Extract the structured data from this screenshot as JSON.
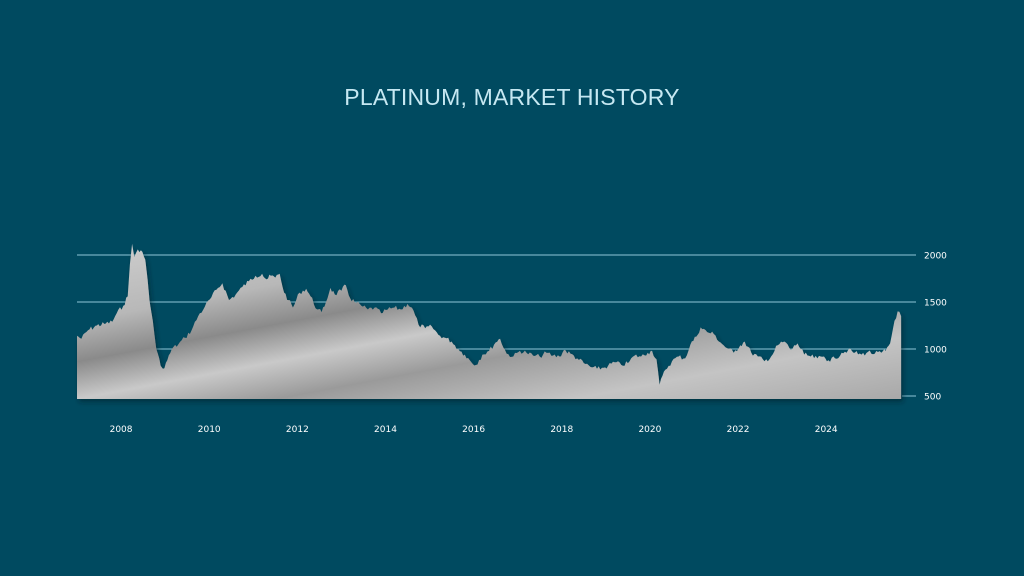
{
  "colors": {
    "background": "#004a60",
    "title": "#c6e8f2",
    "gridline": "#8fc7d8",
    "area_light": "#c8c8c8",
    "area_dark": "#8c8c8c",
    "tick_text": "#ffffff"
  },
  "chart_data": {
    "type": "area",
    "title": "PLATINUM, MARKET HISTORY",
    "xlabel": "",
    "ylabel": "",
    "grid": true,
    "legend": "none",
    "ylim": [
      500,
      2000
    ],
    "xlim": [
      2007.0,
      2025.72
    ],
    "y_ticks": [
      {
        "value": 2000,
        "label": "2000"
      },
      {
        "value": 1500,
        "label": "1500"
      },
      {
        "value": 1000,
        "label": "1000"
      },
      {
        "value": 500,
        "label": "500"
      }
    ],
    "x_ticks": [
      {
        "value": 2008,
        "label": "2008"
      },
      {
        "value": 2010,
        "label": "2010"
      },
      {
        "value": 2012,
        "label": "2012"
      },
      {
        "value": 2014,
        "label": "2014"
      },
      {
        "value": 2016,
        "label": "2016"
      },
      {
        "value": 2018,
        "label": "2018"
      },
      {
        "value": 2020,
        "label": "2020"
      },
      {
        "value": 2022,
        "label": "2022"
      },
      {
        "value": 2024,
        "label": "2024"
      }
    ],
    "series": [
      {
        "points": [
          [
            2007.0,
            1140
          ],
          [
            2007.1,
            1110
          ],
          [
            2007.25,
            1200
          ],
          [
            2007.45,
            1250
          ],
          [
            2007.65,
            1270
          ],
          [
            2007.8,
            1290
          ],
          [
            2007.9,
            1380
          ],
          [
            2008.05,
            1460
          ],
          [
            2008.15,
            1560
          ],
          [
            2008.2,
            1900
          ],
          [
            2008.25,
            2120
          ],
          [
            2008.3,
            1980
          ],
          [
            2008.38,
            2060
          ],
          [
            2008.45,
            2050
          ],
          [
            2008.55,
            1950
          ],
          [
            2008.6,
            1750
          ],
          [
            2008.65,
            1500
          ],
          [
            2008.72,
            1300
          ],
          [
            2008.8,
            1000
          ],
          [
            2008.9,
            820
          ],
          [
            2008.95,
            790
          ],
          [
            2009.05,
            880
          ],
          [
            2009.15,
            1000
          ],
          [
            2009.3,
            1050
          ],
          [
            2009.45,
            1120
          ],
          [
            2009.6,
            1200
          ],
          [
            2009.75,
            1350
          ],
          [
            2009.9,
            1450
          ],
          [
            2010.05,
            1550
          ],
          [
            2010.2,
            1650
          ],
          [
            2010.3,
            1700
          ],
          [
            2010.45,
            1520
          ],
          [
            2010.6,
            1580
          ],
          [
            2010.75,
            1660
          ],
          [
            2010.9,
            1720
          ],
          [
            2011.05,
            1780
          ],
          [
            2011.2,
            1800
          ],
          [
            2011.3,
            1740
          ],
          [
            2011.4,
            1780
          ],
          [
            2011.5,
            1760
          ],
          [
            2011.6,
            1800
          ],
          [
            2011.7,
            1600
          ],
          [
            2011.8,
            1520
          ],
          [
            2011.9,
            1440
          ],
          [
            2012.05,
            1600
          ],
          [
            2012.2,
            1640
          ],
          [
            2012.3,
            1560
          ],
          [
            2012.45,
            1420
          ],
          [
            2012.55,
            1390
          ],
          [
            2012.65,
            1500
          ],
          [
            2012.75,
            1650
          ],
          [
            2012.85,
            1580
          ],
          [
            2013.0,
            1620
          ],
          [
            2013.1,
            1680
          ],
          [
            2013.2,
            1540
          ],
          [
            2013.3,
            1500
          ],
          [
            2013.45,
            1460
          ],
          [
            2013.6,
            1420
          ],
          [
            2013.75,
            1440
          ],
          [
            2013.9,
            1380
          ],
          [
            2014.05,
            1420
          ],
          [
            2014.2,
            1440
          ],
          [
            2014.35,
            1420
          ],
          [
            2014.5,
            1480
          ],
          [
            2014.6,
            1440
          ],
          [
            2014.75,
            1260
          ],
          [
            2014.9,
            1220
          ],
          [
            2015.05,
            1240
          ],
          [
            2015.2,
            1150
          ],
          [
            2015.35,
            1120
          ],
          [
            2015.5,
            1080
          ],
          [
            2015.65,
            1000
          ],
          [
            2015.8,
            940
          ],
          [
            2015.95,
            860
          ],
          [
            2016.05,
            830
          ],
          [
            2016.2,
            940
          ],
          [
            2016.35,
            980
          ],
          [
            2016.5,
            1070
          ],
          [
            2016.6,
            1110
          ],
          [
            2016.75,
            950
          ],
          [
            2016.9,
            920
          ],
          [
            2017.05,
            980
          ],
          [
            2017.2,
            960
          ],
          [
            2017.35,
            930
          ],
          [
            2017.5,
            920
          ],
          [
            2017.65,
            960
          ],
          [
            2017.8,
            930
          ],
          [
            2017.95,
            920
          ],
          [
            2018.05,
            990
          ],
          [
            2018.2,
            950
          ],
          [
            2018.35,
            900
          ],
          [
            2018.5,
            850
          ],
          [
            2018.65,
            810
          ],
          [
            2018.8,
            790
          ],
          [
            2018.95,
            800
          ],
          [
            2019.05,
            820
          ],
          [
            2019.2,
            860
          ],
          [
            2019.35,
            830
          ],
          [
            2019.5,
            850
          ],
          [
            2019.65,
            930
          ],
          [
            2019.8,
            920
          ],
          [
            2019.95,
            960
          ],
          [
            2020.05,
            980
          ],
          [
            2020.15,
            890
          ],
          [
            2020.22,
            620
          ],
          [
            2020.35,
            780
          ],
          [
            2020.5,
            870
          ],
          [
            2020.65,
            920
          ],
          [
            2020.8,
            900
          ],
          [
            2020.92,
            1050
          ],
          [
            2021.05,
            1130
          ],
          [
            2021.15,
            1230
          ],
          [
            2021.3,
            1180
          ],
          [
            2021.45,
            1160
          ],
          [
            2021.6,
            1070
          ],
          [
            2021.75,
            1010
          ],
          [
            2021.9,
            960
          ],
          [
            2022.05,
            1040
          ],
          [
            2022.15,
            1080
          ],
          [
            2022.3,
            960
          ],
          [
            2022.45,
            920
          ],
          [
            2022.6,
            870
          ],
          [
            2022.75,
            920
          ],
          [
            2022.9,
            1040
          ],
          [
            2023.05,
            1080
          ],
          [
            2023.2,
            990
          ],
          [
            2023.35,
            1060
          ],
          [
            2023.5,
            940
          ],
          [
            2023.65,
            920
          ],
          [
            2023.8,
            900
          ],
          [
            2023.95,
            920
          ],
          [
            2024.05,
            880
          ],
          [
            2024.2,
            900
          ],
          [
            2024.35,
            960
          ],
          [
            2024.5,
            990
          ],
          [
            2024.65,
            960
          ],
          [
            2024.8,
            940
          ],
          [
            2024.95,
            970
          ],
          [
            2025.1,
            950
          ],
          [
            2025.25,
            960
          ],
          [
            2025.35,
            980
          ],
          [
            2025.45,
            1060
          ],
          [
            2025.55,
            1300
          ],
          [
            2025.62,
            1400
          ],
          [
            2025.7,
            1350
          ]
        ]
      }
    ]
  }
}
